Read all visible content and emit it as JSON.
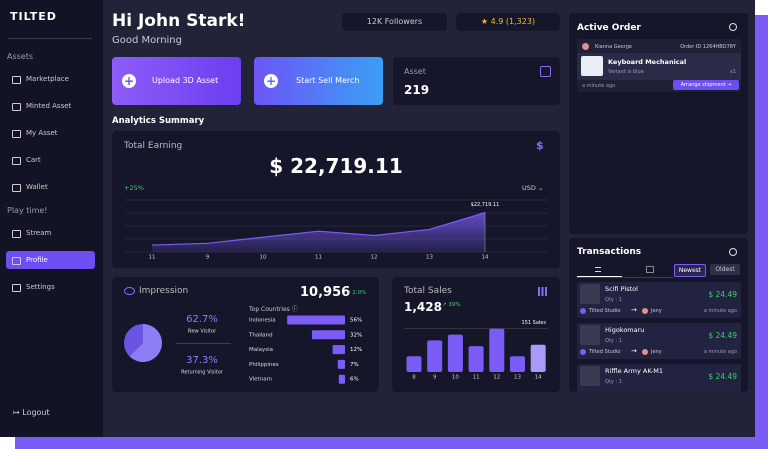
{
  "sidebar": {
    "brand": "TILTED",
    "groups": [
      {
        "title": "Assets",
        "items": [
          "Marketplace",
          "Minted Asset",
          "My Asset",
          "Cart",
          "Wallet"
        ]
      },
      {
        "title": "Play time!",
        "items": [
          "Stream",
          "Profile",
          "Settings"
        ]
      }
    ],
    "logout": "Logout"
  },
  "header": {
    "greeting": "Hi John Stark!",
    "subtitle": "Good Morning",
    "followers": "12K Followers",
    "rating": "4.9",
    "reviews": "(1,323)"
  },
  "actions": {
    "upload": "Upload 3D Asset",
    "sell": "Start Sell Merch"
  },
  "asset": {
    "label": "Asset",
    "value": "219"
  },
  "analytics_title": "Analytics Summary",
  "earning": {
    "title": "Total Earning",
    "total": "$ 22,719.11",
    "change": "+25%",
    "currency": "USD",
    "chart": {
      "type": "area",
      "categories": [
        "11",
        "9",
        "10",
        "11",
        "12",
        "13",
        "14"
      ],
      "values": [
        4000,
        5000,
        8500,
        12000,
        9500,
        13000,
        22719.11
      ],
      "ylim": [
        0,
        30000
      ],
      "annotation": "$22,719.11",
      "color": "#7c5cf6"
    }
  },
  "impression": {
    "title": "Impression",
    "total": "10,956",
    "change": "2.0%",
    "chart": {
      "type": "pie",
      "categories": [
        "New Visitor",
        "Returning Visitor"
      ],
      "values": [
        62.7,
        37.3
      ],
      "value_labels": [
        "62.7%",
        "37.3%"
      ],
      "colors": [
        "#8d7ef7",
        "#6a55e3"
      ]
    },
    "countries": {
      "title": "Top Countries",
      "chart": {
        "type": "bar",
        "orientation": "horizontal",
        "categories": [
          "Indonesia",
          "Thailand",
          "Malaysia",
          "Philippines",
          "Vietnam"
        ],
        "values": [
          56,
          32,
          12,
          7,
          6
        ],
        "value_labels": [
          "56%",
          "32%",
          "12%",
          "7%",
          "6%"
        ],
        "xlim": [
          0,
          60
        ],
        "color": "#7c5cf6"
      }
    }
  },
  "sales": {
    "title": "Total Sales",
    "total": "1,428",
    "change": "39%",
    "chart": {
      "type": "bar",
      "categories": [
        "8",
        "9",
        "10",
        "11",
        "12",
        "13",
        "14"
      ],
      "values": [
        55,
        110,
        130,
        90,
        151,
        55,
        95
      ],
      "ylim": [
        0,
        160
      ],
      "annotation": "151 Sales",
      "color": "#7c5cf6"
    }
  },
  "active_order": {
    "title": "Active Order",
    "customer": "Kianna George",
    "order_id": "Order ID 1264HBD78Y",
    "product": "Keyboard Mechanical",
    "variant": "Variant is blue",
    "qty": "x1",
    "time": "a minute ago",
    "button": "Arrange shipment"
  },
  "transactions": {
    "title": "Transactions",
    "newest": "Newest",
    "oldest": "Oldest",
    "items": [
      {
        "name": "Scifi Pistol",
        "qty": "Qty : 1",
        "price": "$ 24.49",
        "from": "Tilted Studio",
        "to": "Jeny",
        "time": "a minute ago"
      },
      {
        "name": "Higokomaru",
        "qty": "Qty : 1",
        "price": "$ 24.49",
        "from": "Tilted Studio",
        "to": "Jeny",
        "time": "a minute ago"
      },
      {
        "name": "Riffle Army AK-M1",
        "qty": "Qty : 1",
        "price": "$ 24.49"
      }
    ]
  }
}
